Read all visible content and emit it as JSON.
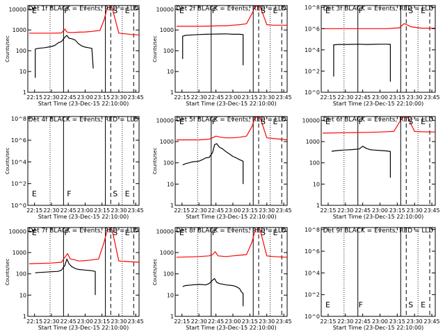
{
  "chart_data": [
    {
      "type": "line",
      "title": "Det 1f BLACK = Events, RED = LLD",
      "xlabel": "Start Time (23-Dec-15 22:10:00)",
      "ylabel": "Counts/sec",
      "xlim": [
        22.15,
        23.8
      ],
      "ylim": [
        1,
        15000
      ],
      "log_y": true,
      "xticks": [
        "22:15",
        "22:30",
        "22:45",
        "23:00",
        "23:15",
        "23:30",
        "23:45"
      ],
      "yticks": [
        "1",
        "10",
        "100",
        "1000",
        "10000"
      ],
      "ytick_values": [
        1,
        10,
        100,
        1000,
        10000
      ],
      "dotted_lines": [
        22.48,
        23.55
      ],
      "solid_lines": [
        22.68,
        23.3
      ],
      "dashed_lines": [
        23.38,
        23.72
      ],
      "markers": [
        {
          "text": "E",
          "x": 22.2
        },
        {
          "text": "F",
          "x": 22.68
        },
        {
          "text": "S",
          "x": 23.4
        },
        {
          "text": "E",
          "x": 23.58
        }
      ],
      "series": [
        {
          "color": "#000000",
          "x": [
            22.26,
            22.26,
            22.3,
            22.4,
            22.5,
            22.55,
            22.6,
            22.65,
            22.7,
            22.73,
            22.76,
            22.8,
            22.85,
            22.9,
            22.95,
            23.0,
            23.05,
            23.1,
            23.12
          ],
          "y": [
            5,
            120,
            130,
            140,
            160,
            180,
            240,
            280,
            450,
            550,
            400,
            380,
            330,
            220,
            170,
            150,
            140,
            130,
            14
          ]
        },
        {
          "color": "#ff0000",
          "x": [
            22.17,
            22.5,
            22.65,
            22.7,
            22.73,
            22.76,
            22.82,
            22.9,
            23.0,
            23.1,
            23.15,
            23.22,
            23.28,
            23.33,
            23.4,
            23.5,
            23.6,
            23.7,
            23.8
          ],
          "y": [
            700,
            700,
            720,
            1100,
            800,
            750,
            760,
            780,
            800,
            850,
            900,
            950,
            3000,
            12000,
            12000,
            700,
            650,
            600,
            580
          ]
        }
      ]
    },
    {
      "type": "line",
      "title": "Det 2f BLACK = Events, RED = LLD",
      "xlabel": "Start Time (23-Dec-15 22:10:00)",
      "ylabel": "Counts/sec",
      "xlim": [
        22.15,
        23.8
      ],
      "ylim": [
        1,
        15000
      ],
      "log_y": true,
      "xticks": [
        "22:15",
        "22:30",
        "22:45",
        "23:00",
        "23:15",
        "23:30",
        "23:45"
      ],
      "yticks": [
        "1",
        "10",
        "100",
        "1000",
        "10000"
      ],
      "ytick_values": [
        1,
        10,
        100,
        1000,
        10000
      ],
      "dotted_lines": [
        22.48,
        23.55
      ],
      "solid_lines": [
        22.68,
        23.3
      ],
      "dashed_lines": [
        23.38,
        23.72
      ],
      "markers": [
        {
          "text": "E",
          "x": 22.2
        },
        {
          "text": "F",
          "x": 22.68
        },
        {
          "text": "S",
          "x": 23.4
        },
        {
          "text": "E",
          "x": 23.58
        }
      ],
      "series": [
        {
          "color": "#000000",
          "x": [
            22.26,
            22.26,
            22.3,
            22.4,
            22.5,
            22.6,
            22.7,
            22.8,
            22.9,
            23.0,
            23.1,
            23.15,
            23.15
          ],
          "y": [
            40,
            500,
            550,
            580,
            600,
            620,
            630,
            640,
            650,
            620,
            620,
            600,
            20
          ]
        },
        {
          "color": "#ff0000",
          "x": [
            22.17,
            22.5,
            22.7,
            22.8,
            22.9,
            23.0,
            23.1,
            23.2,
            23.28,
            23.33,
            23.4,
            23.5,
            23.6,
            23.8
          ],
          "y": [
            1500,
            1500,
            1550,
            1600,
            1600,
            1700,
            1800,
            2000,
            6000,
            14000,
            14000,
            1800,
            1700,
            1700
          ]
        }
      ]
    },
    {
      "type": "line",
      "title": "Det 3f BLACK = Events, RED = LLD",
      "xlabel": "Start Time (23-Dec-15 22:10:00)",
      "ylabel": "",
      "xlim": [
        22.15,
        23.8
      ],
      "ylim": [
        1,
        150000000
      ],
      "log_y": true,
      "xticks": [
        "22:15",
        "22:30",
        "22:45",
        "23:00",
        "23:15",
        "23:30",
        "23:45"
      ],
      "yticks": [
        "10^0",
        "10^2",
        "10^4",
        "10^6",
        "10^8"
      ],
      "ytick_values": [
        1,
        100,
        10000,
        1000000,
        100000000
      ],
      "dotted_lines": [
        22.48,
        23.55
      ],
      "solid_lines": [
        22.68,
        23.3
      ],
      "dashed_lines": [
        23.38,
        23.72
      ],
      "markers": [
        {
          "text": "E",
          "x": 22.2
        },
        {
          "text": "F",
          "x": 22.68
        },
        {
          "text": "S",
          "x": 23.4
        },
        {
          "text": "E",
          "x": 23.58
        }
      ],
      "series": [
        {
          "color": "#000000",
          "x": [
            22.33,
            22.33,
            22.4,
            22.5,
            22.6,
            22.7,
            22.8,
            22.9,
            23.0,
            23.1,
            23.15,
            23.15
          ],
          "y": [
            30,
            30000,
            32000,
            32000,
            33000,
            34000,
            32000,
            33000,
            34000,
            34000,
            33000,
            10
          ]
        },
        {
          "color": "#ff0000",
          "x": [
            22.17,
            22.5,
            22.8,
            23.0,
            23.1,
            23.2,
            23.28,
            23.35,
            23.45,
            23.6,
            23.8
          ],
          "y": [
            1000000,
            1000000,
            1000000,
            1000000,
            1000000,
            1100000,
            1200000,
            3000000,
            1500000,
            1100000,
            1100000
          ]
        }
      ]
    },
    {
      "type": "line",
      "title": "Det 4f BLACK = Events, RED = LLD",
      "xlabel": "Start Time (23-Dec-15 22:10:00)",
      "ylabel": "Counts/sec",
      "xlim": [
        22.15,
        23.8
      ],
      "ylim": [
        1,
        150000000
      ],
      "log_y": true,
      "xticks": [
        "22:15",
        "22:30",
        "22:45",
        "23:00",
        "23:15",
        "23:30",
        "23:45"
      ],
      "yticks": [
        "10^0",
        "10^2",
        "10^4",
        "10^6",
        "10^8"
      ],
      "ytick_values": [
        1,
        100,
        10000,
        1000000,
        100000000
      ],
      "dotted_lines": [
        22.48,
        23.55
      ],
      "solid_lines": [
        22.68,
        23.3
      ],
      "dashed_lines": [
        23.38,
        23.72
      ],
      "markers": [
        {
          "text": "E",
          "x": 22.2
        },
        {
          "text": "F",
          "x": 22.72
        },
        {
          "text": "S",
          "x": 23.4
        },
        {
          "text": "E",
          "x": 23.58
        }
      ],
      "series": []
    },
    {
      "type": "line",
      "title": "Det 5f BLACK = Events, RED = LLD",
      "xlabel": "Start Time (23-Dec-15 22:10:00)",
      "ylabel": "Counts/sec",
      "xlim": [
        22.15,
        23.8
      ],
      "ylim": [
        1,
        15000
      ],
      "log_y": true,
      "xticks": [
        "22:15",
        "22:30",
        "22:45",
        "23:00",
        "23:15",
        "23:30",
        "23:45"
      ],
      "yticks": [
        "1",
        "10",
        "100",
        "1000",
        "10000"
      ],
      "ytick_values": [
        1,
        10,
        100,
        1000,
        10000
      ],
      "dotted_lines": [
        22.48,
        23.55
      ],
      "solid_lines": [
        22.68,
        23.3
      ],
      "dashed_lines": [
        23.38,
        23.72
      ],
      "markers": [
        {
          "text": "E",
          "x": 22.2
        },
        {
          "text": "F",
          "x": 22.68
        },
        {
          "text": "S",
          "x": 23.4
        },
        {
          "text": "E",
          "x": 23.58
        }
      ],
      "series": [
        {
          "color": "#000000",
          "x": [
            22.26,
            22.3,
            22.4,
            22.5,
            22.55,
            22.6,
            22.65,
            22.7,
            22.73,
            22.76,
            22.8,
            22.85,
            22.9,
            22.95,
            23.0,
            23.05,
            23.1,
            23.15,
            23.15
          ],
          "y": [
            80,
            90,
            110,
            120,
            140,
            170,
            180,
            300,
            700,
            800,
            550,
            450,
            330,
            260,
            200,
            170,
            140,
            120,
            10
          ]
        },
        {
          "color": "#ff0000",
          "x": [
            22.17,
            22.5,
            22.65,
            22.7,
            22.75,
            22.82,
            22.9,
            23.0,
            23.1,
            23.2,
            23.28,
            23.33,
            23.4,
            23.5,
            23.6,
            23.7,
            23.8
          ],
          "y": [
            1200,
            1200,
            1300,
            1500,
            1800,
            1600,
            1500,
            1500,
            1600,
            1800,
            5000,
            14000,
            14000,
            1500,
            1400,
            1300,
            1200
          ]
        }
      ]
    },
    {
      "type": "line",
      "title": "Det 6f BLACK = Events, RED = LLD",
      "xlabel": "Start Time (23-Dec-15 22:10:00)",
      "ylabel": "",
      "xlim": [
        22.15,
        23.8
      ],
      "ylim": [
        1,
        15000
      ],
      "log_y": true,
      "xticks": [
        "22:15",
        "22:30",
        "22:45",
        "23:00",
        "23:15",
        "23:30",
        "23:45"
      ],
      "yticks": [
        "1",
        "10",
        "100",
        "1000",
        "10000"
      ],
      "ytick_values": [
        1,
        10,
        100,
        1000,
        10000
      ],
      "dotted_lines": [
        22.48,
        23.55
      ],
      "solid_lines": [
        22.68,
        23.3
      ],
      "dashed_lines": [
        23.38,
        23.72
      ],
      "markers": [
        {
          "text": "E",
          "x": 22.2
        },
        {
          "text": "F",
          "x": 22.68
        },
        {
          "text": "S",
          "x": 23.4
        },
        {
          "text": "E",
          "x": 23.58
        }
      ],
      "series": [
        {
          "color": "#000000",
          "x": [
            22.3,
            22.4,
            22.5,
            22.6,
            22.7,
            22.75,
            22.8,
            22.85,
            22.9,
            23.0,
            23.1,
            23.15,
            23.15
          ],
          "y": [
            350,
            380,
            400,
            420,
            450,
            600,
            480,
            420,
            400,
            380,
            360,
            340,
            20
          ]
        },
        {
          "color": "#ff0000",
          "x": [
            22.17,
            22.5,
            22.8,
            23.0,
            23.2,
            23.28,
            23.33,
            23.4,
            23.5,
            23.6,
            23.8
          ],
          "y": [
            2500,
            2600,
            2700,
            2800,
            3000,
            8000,
            14000,
            14000,
            3000,
            2900,
            2800
          ]
        }
      ]
    },
    {
      "type": "line",
      "title": "Det 7f BLACK = Events, RED = LLD",
      "xlabel": "Start Time (23-Dec-15 22:10:00)",
      "ylabel": "Counts/sec",
      "xlim": [
        22.15,
        23.8
      ],
      "ylim": [
        1,
        15000
      ],
      "log_y": true,
      "xticks": [
        "22:15",
        "22:30",
        "22:45",
        "23:00",
        "23:15",
        "23:30",
        "23:45"
      ],
      "yticks": [
        "1",
        "10",
        "100",
        "1000",
        "10000"
      ],
      "ytick_values": [
        1,
        10,
        100,
        1000,
        10000
      ],
      "dotted_lines": [
        22.48,
        23.55
      ],
      "solid_lines": [
        22.68,
        23.3
      ],
      "dashed_lines": [
        23.38,
        23.72
      ],
      "markers": [
        {
          "text": "E",
          "x": 22.2
        },
        {
          "text": "F",
          "x": 22.68
        },
        {
          "text": "S",
          "x": 23.4
        },
        {
          "text": "E",
          "x": 23.58
        }
      ],
      "series": [
        {
          "color": "#000000",
          "x": [
            22.26,
            22.3,
            22.4,
            22.5,
            22.6,
            22.65,
            22.7,
            22.73,
            22.76,
            22.8,
            22.85,
            22.9,
            23.0,
            23.1,
            23.15,
            23.15
          ],
          "y": [
            110,
            115,
            120,
            125,
            130,
            150,
            250,
            500,
            300,
            220,
            180,
            160,
            150,
            140,
            130,
            10
          ]
        },
        {
          "color": "#ff0000",
          "x": [
            22.17,
            22.5,
            22.65,
            22.7,
            22.74,
            22.78,
            22.85,
            22.9,
            23.0,
            23.1,
            23.2,
            23.28,
            23.33,
            23.4,
            23.5,
            23.6,
            23.8
          ],
          "y": [
            300,
            320,
            350,
            600,
            900,
            500,
            450,
            400,
            420,
            450,
            500,
            3000,
            12000,
            12000,
            400,
            380,
            350
          ]
        }
      ]
    },
    {
      "type": "line",
      "title": "Det 8f BLACK = Events, RED = LLD",
      "xlabel": "Start Time (23-Dec-15 22:10:00)",
      "ylabel": "Counts/sec",
      "xlim": [
        22.15,
        23.8
      ],
      "ylim": [
        1,
        15000
      ],
      "log_y": true,
      "xticks": [
        "22:15",
        "22:30",
        "22:45",
        "23:00",
        "23:15",
        "23:30",
        "23:45"
      ],
      "yticks": [
        "1",
        "10",
        "100",
        "1000",
        "10000"
      ],
      "ytick_values": [
        1,
        10,
        100,
        1000,
        10000
      ],
      "dotted_lines": [
        22.48,
        23.55
      ],
      "solid_lines": [
        22.68,
        23.3
      ],
      "dashed_lines": [
        23.38,
        23.72
      ],
      "markers": [
        {
          "text": "E",
          "x": 22.2
        },
        {
          "text": "F",
          "x": 22.68
        },
        {
          "text": "S",
          "x": 23.4
        },
        {
          "text": "E",
          "x": 23.58
        }
      ],
      "series": [
        {
          "color": "#000000",
          "x": [
            22.26,
            22.3,
            22.4,
            22.5,
            22.6,
            22.65,
            22.7,
            22.73,
            22.76,
            22.8,
            22.9,
            23.0,
            23.05,
            23.1,
            23.12,
            23.15,
            23.15
          ],
          "y": [
            25,
            28,
            30,
            32,
            30,
            35,
            50,
            60,
            40,
            35,
            30,
            28,
            25,
            20,
            15,
            12,
            3
          ]
        },
        {
          "color": "#ff0000",
          "x": [
            22.17,
            22.5,
            22.65,
            22.7,
            22.74,
            22.78,
            22.9,
            23.0,
            23.1,
            23.2,
            23.28,
            23.33,
            23.4,
            23.5,
            23.6,
            23.8
          ],
          "y": [
            600,
            650,
            700,
            800,
            1100,
            700,
            650,
            700,
            750,
            800,
            3000,
            12000,
            12000,
            700,
            650,
            600
          ]
        }
      ]
    },
    {
      "type": "line",
      "title": "Det 9f BLACK = Events, RED = LLD",
      "xlabel": "Start Time (23-Dec-15 22:10:00)",
      "ylabel": "",
      "xlim": [
        22.15,
        23.8
      ],
      "ylim": [
        1,
        150000000
      ],
      "log_y": true,
      "xticks": [
        "22:15",
        "22:30",
        "22:45",
        "23:00",
        "23:15",
        "23:30",
        "23:45"
      ],
      "yticks": [
        "10^0",
        "10^2",
        "10^4",
        "10^6",
        "10^8"
      ],
      "ytick_values": [
        1,
        100,
        10000,
        1000000,
        100000000
      ],
      "dotted_lines": [
        22.48,
        23.55
      ],
      "solid_lines": [
        22.68,
        23.3
      ],
      "dashed_lines": [
        23.38,
        23.72
      ],
      "markers": [
        {
          "text": "E",
          "x": 22.2
        },
        {
          "text": "F",
          "x": 22.68
        },
        {
          "text": "S",
          "x": 23.4
        },
        {
          "text": "E",
          "x": 23.58
        }
      ],
      "series": []
    }
  ]
}
